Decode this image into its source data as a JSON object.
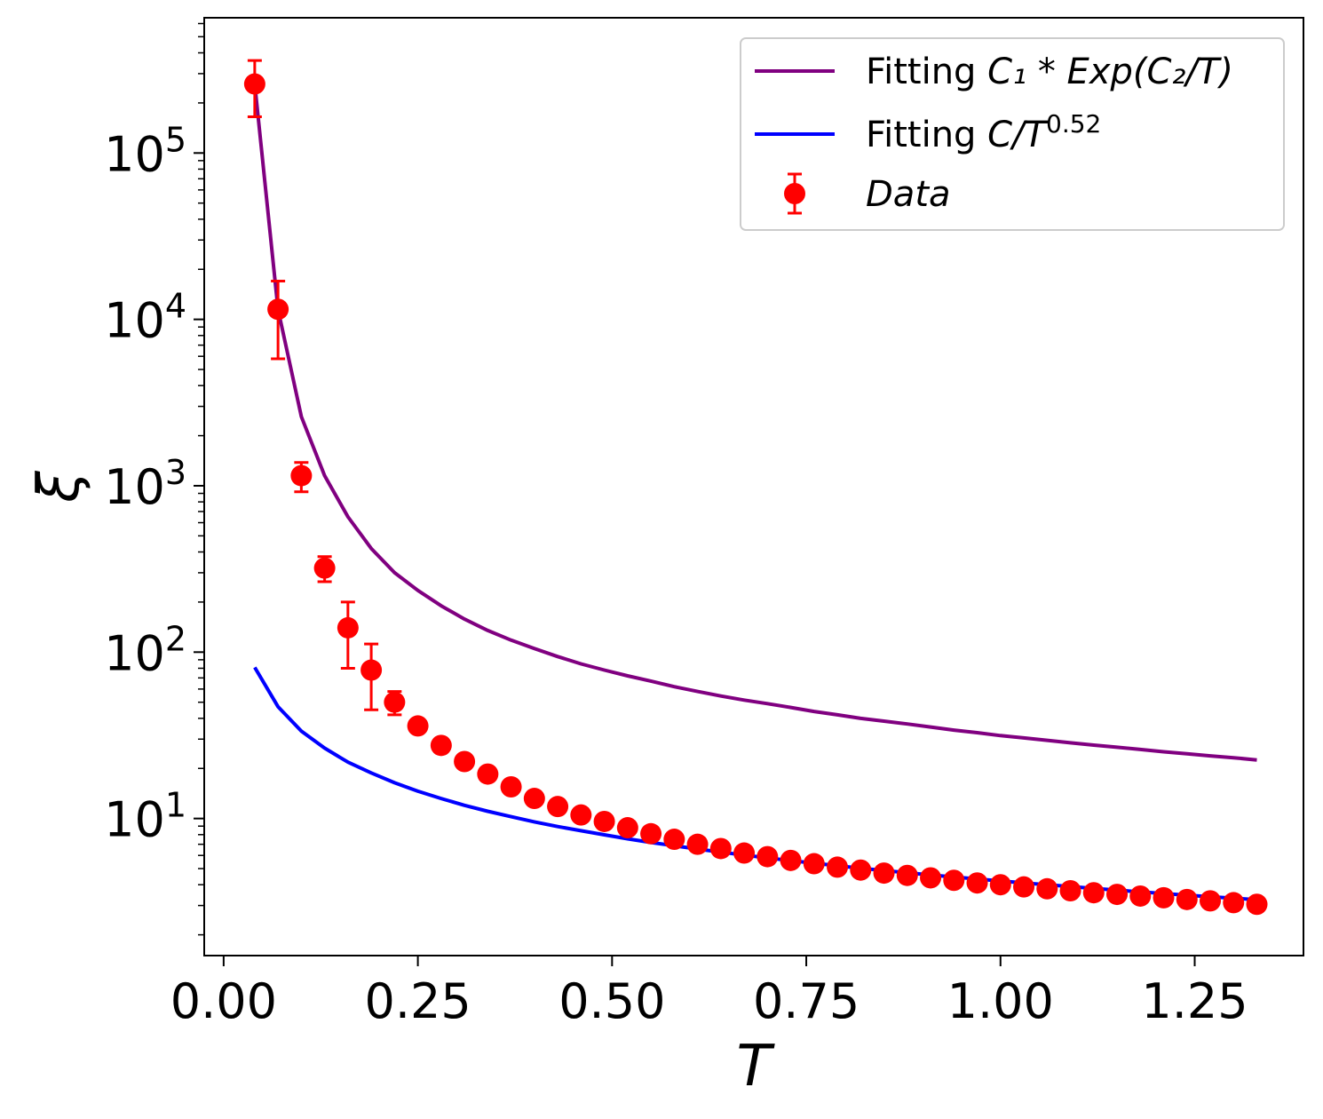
{
  "chart_data": {
    "type": "scatter",
    "xlabel": "T",
    "ylabel": "ξ",
    "yscale": "log",
    "xlim": [
      -0.025,
      1.39
    ],
    "ylim": [
      1.5,
      650000
    ],
    "xticks": [
      0.0,
      0.25,
      0.5,
      0.75,
      1.0,
      1.25
    ],
    "xtick_labels": [
      "0.00",
      "0.25",
      "0.50",
      "0.75",
      "1.00",
      "1.25"
    ],
    "yticks": [
      {
        "value": 10,
        "base": "10",
        "exp": "1"
      },
      {
        "value": 100,
        "base": "10",
        "exp": "2"
      },
      {
        "value": 1000,
        "base": "10",
        "exp": "3"
      },
      {
        "value": 10000,
        "base": "10",
        "exp": "4"
      },
      {
        "value": 100000,
        "base": "10",
        "exp": "5"
      }
    ],
    "legend_position": "top-right",
    "legend": [
      {
        "label_prefix": "Fitting ",
        "formula": "C₁ * Exp(C₂/T)",
        "color": "#800080",
        "kind": "line"
      },
      {
        "label_prefix": "Fitting ",
        "formula": "C/T",
        "sup": "0.52",
        "color": "#0000ff",
        "kind": "line"
      },
      {
        "label_prefix": "",
        "formula": "Data",
        "color": "#ff0000",
        "kind": "errorbar"
      }
    ],
    "series": [
      {
        "name": "Fitting C₁ * Exp(C₂/T)",
        "kind": "line",
        "color": "#800080",
        "x": [
          0.04,
          0.07,
          0.1,
          0.13,
          0.16,
          0.19,
          0.22,
          0.25,
          0.28,
          0.31,
          0.34,
          0.37,
          0.4,
          0.43,
          0.46,
          0.49,
          0.52,
          0.55,
          0.58,
          0.61,
          0.64,
          0.67,
          0.7,
          0.73,
          0.76,
          0.79,
          0.82,
          0.85,
          0.88,
          0.91,
          0.94,
          0.97,
          1.0,
          1.03,
          1.06,
          1.09,
          1.12,
          1.15,
          1.18,
          1.21,
          1.24,
          1.27,
          1.3,
          1.33
        ],
        "y": [
          260000,
          11500,
          2600,
          1150,
          650,
          420,
          300,
          235,
          190,
          158,
          135,
          118,
          105,
          94,
          85,
          78,
          72,
          67,
          62,
          58,
          54.5,
          51.5,
          49,
          46.5,
          44,
          42,
          40,
          38.5,
          37,
          35.5,
          34,
          32.8,
          31.5,
          30.5,
          29.5,
          28.5,
          27.6,
          26.8,
          26,
          25.2,
          24.5,
          23.8,
          23.2,
          22.5
        ]
      },
      {
        "name": "Fitting C/T^0.52",
        "kind": "line",
        "color": "#0000ff",
        "x": [
          0.04,
          0.07,
          0.1,
          0.13,
          0.16,
          0.19,
          0.22,
          0.25,
          0.28,
          0.31,
          0.34,
          0.37,
          0.4,
          0.43,
          0.46,
          0.49,
          0.52,
          0.55,
          0.58,
          0.61,
          0.64,
          0.67,
          0.7,
          0.73,
          0.76,
          0.79,
          0.82,
          0.85,
          0.88,
          0.91,
          0.94,
          0.97,
          1.0,
          1.03,
          1.06,
          1.09,
          1.12,
          1.15,
          1.18,
          1.21,
          1.24,
          1.27,
          1.3,
          1.33
        ],
        "y": [
          81,
          47,
          33.5,
          26.5,
          21.8,
          18.8,
          16.4,
          14.6,
          13.2,
          12.0,
          11.05,
          10.25,
          9.55,
          8.95,
          8.45,
          7.98,
          7.55,
          7.18,
          6.86,
          6.56,
          6.28,
          6.03,
          5.8,
          5.58,
          5.39,
          5.2,
          5.03,
          4.87,
          4.72,
          4.58,
          4.45,
          4.33,
          4.21,
          4.1,
          4.0,
          3.9,
          3.8,
          3.71,
          3.62,
          3.54,
          3.46,
          3.39,
          3.32,
          3.25
        ]
      },
      {
        "name": "Data",
        "kind": "errorbar",
        "color": "#ff0000",
        "x": [
          0.04,
          0.07,
          0.1,
          0.13,
          0.16,
          0.19,
          0.22,
          0.25,
          0.28,
          0.31,
          0.34,
          0.37,
          0.4,
          0.43,
          0.46,
          0.49,
          0.52,
          0.55,
          0.58,
          0.61,
          0.64,
          0.67,
          0.7,
          0.73,
          0.76,
          0.79,
          0.82,
          0.85,
          0.88,
          0.91,
          0.94,
          0.97,
          1.0,
          1.03,
          1.06,
          1.09,
          1.12,
          1.15,
          1.18,
          1.21,
          1.24,
          1.27,
          1.3,
          1.33
        ],
        "y": [
          260000,
          11500,
          1150,
          320,
          140,
          78,
          50,
          36,
          27.5,
          22,
          18.5,
          15.5,
          13.2,
          11.8,
          10.5,
          9.6,
          8.8,
          8.1,
          7.5,
          7.0,
          6.6,
          6.2,
          5.9,
          5.6,
          5.35,
          5.1,
          4.9,
          4.7,
          4.55,
          4.4,
          4.25,
          4.1,
          4.0,
          3.88,
          3.78,
          3.68,
          3.58,
          3.5,
          3.42,
          3.34,
          3.26,
          3.2,
          3.12,
          3.05
        ],
        "y_low": [
          165000,
          5800,
          920,
          265,
          80,
          45,
          42,
          33,
          25.5,
          20.5,
          17.3,
          14.5,
          12.4,
          11.1,
          9.9,
          8.9,
          8.3,
          7.6,
          7.1,
          6.6,
          6.2,
          5.85,
          5.55,
          5.3,
          5.05,
          4.8,
          4.6,
          4.45,
          4.3,
          4.15,
          4.0,
          3.75,
          3.78,
          3.66,
          3.56,
          3.47,
          3.38,
          3.3,
          3.22,
          3.15,
          3.08,
          3.02,
          2.95,
          2.88
        ],
        "y_high": [
          360000,
          17000,
          1380,
          375,
          200,
          112,
          58,
          39,
          29.5,
          23.5,
          19.7,
          16.5,
          14.0,
          12.5,
          11.1,
          10.3,
          9.3,
          8.6,
          7.9,
          7.4,
          7.0,
          6.55,
          6.25,
          5.9,
          5.65,
          5.4,
          5.2,
          4.95,
          4.8,
          4.65,
          4.5,
          4.45,
          4.22,
          4.1,
          4.0,
          3.89,
          3.78,
          3.7,
          3.62,
          3.53,
          3.44,
          3.38,
          3.3,
          3.22
        ]
      }
    ]
  }
}
